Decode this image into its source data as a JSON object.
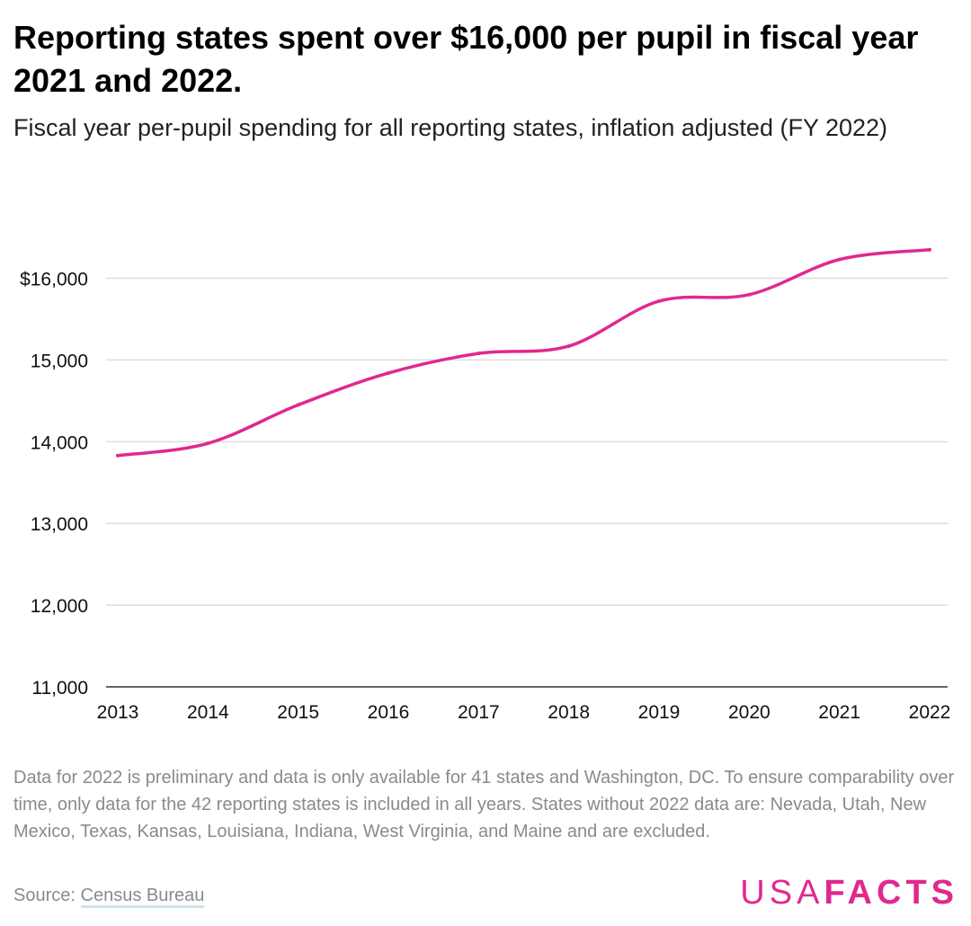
{
  "header": {
    "title": "Reporting states spent over $16,000 per pupil in fiscal year 2021 and 2022.",
    "subtitle": "Fiscal year per-pupil spending for all reporting states, inflation adjusted (FY 2022)"
  },
  "footer": {
    "note": "Data for 2022 is preliminary and data is only available for 41 states and Washington, DC. To ensure comparability over time, only data for the 42 reporting states is included in all years. States without 2022 data are: Nevada, Utah, New Mexico, Texas, Kansas, Louisiana, Indiana, West Virginia, and Maine and are excluded.",
    "source_label": "Source:",
    "source_link": "Census Bureau",
    "logo_light": "USA",
    "logo_bold": "FACTS"
  },
  "colors": {
    "line": "#e0298f",
    "grid": "#dddddd",
    "accent": "#e0298f"
  },
  "chart_data": {
    "type": "line",
    "x": [
      "2013",
      "2014",
      "2015",
      "2016",
      "2017",
      "2018",
      "2019",
      "2020",
      "2021",
      "2022"
    ],
    "series": [
      {
        "values": [
          13830,
          13980,
          14450,
          14840,
          15080,
          15170,
          15720,
          15800,
          16230,
          16350
        ]
      }
    ],
    "ylim": [
      11000,
      16600
    ],
    "yticks": [
      11000,
      12000,
      13000,
      14000,
      15000,
      16000
    ],
    "ytick_labels": [
      "11,000",
      "12,000",
      "13,000",
      "14,000",
      "15,000",
      "$16,000"
    ],
    "grid": true,
    "xlabel": "",
    "ylabel": ""
  }
}
